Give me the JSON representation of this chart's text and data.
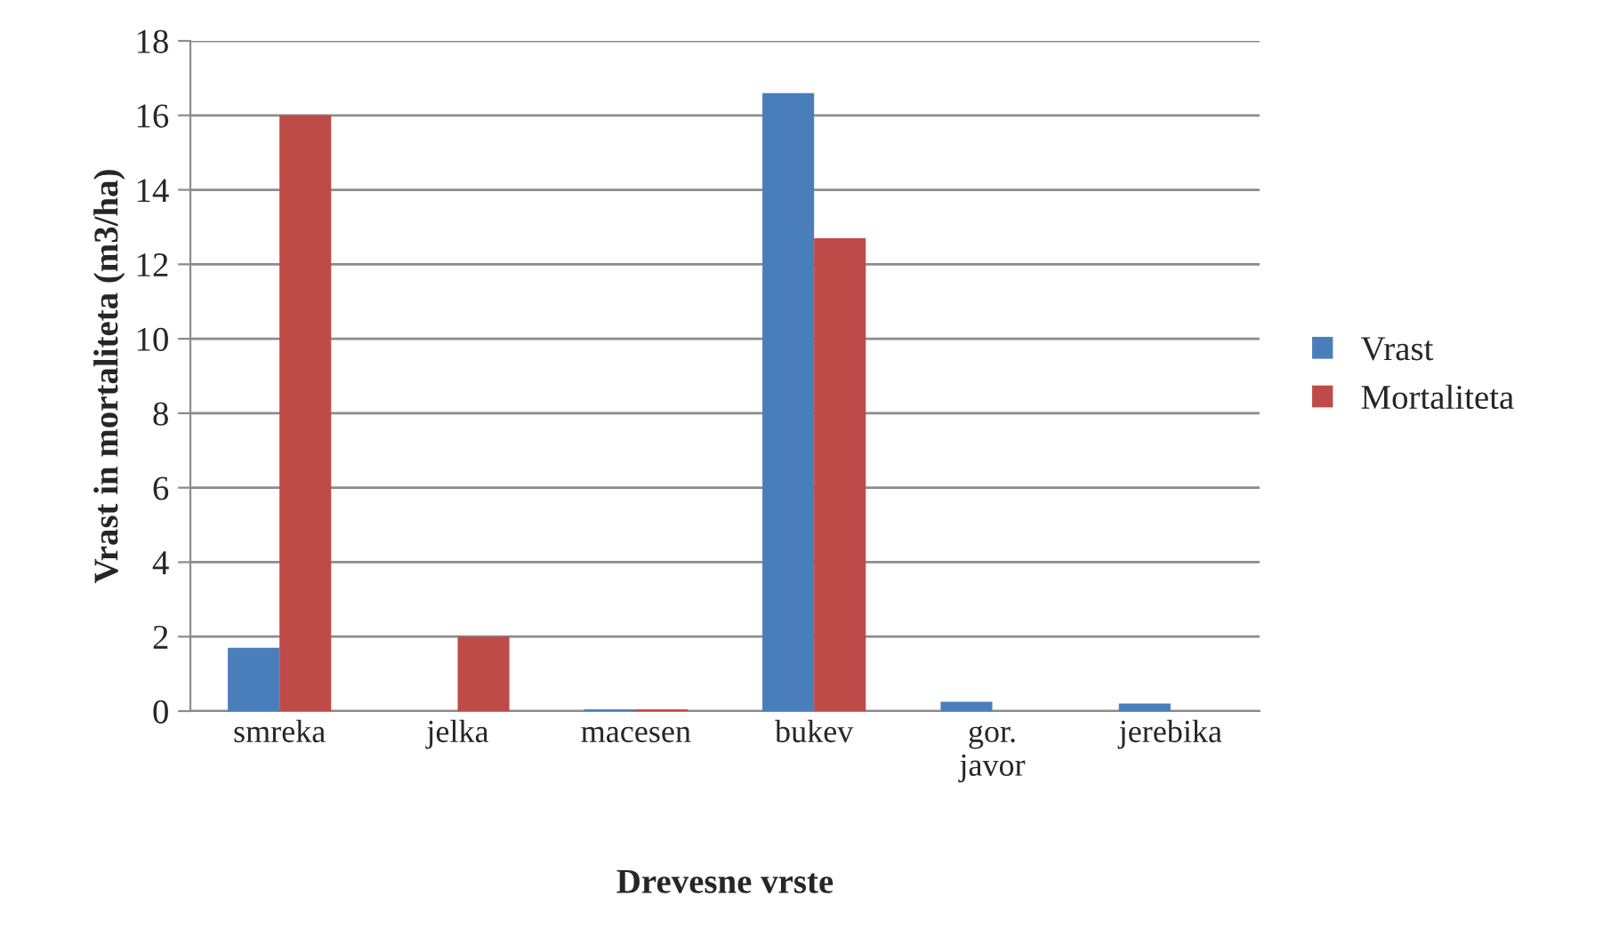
{
  "chart_data": {
    "type": "bar",
    "xlabel": "Drevesne vrste",
    "ylabel": "Vrast in mortaliteta (m3/ha)",
    "categories": [
      "smreka",
      "jelka",
      "macesen",
      "bukev",
      "gor.\njavor",
      "jerebika"
    ],
    "series": [
      {
        "name": "Vrast",
        "color": "#4a7ebb",
        "values": [
          1.7,
          null,
          0.05,
          16.6,
          0.25,
          0.2
        ]
      },
      {
        "name": "Mortaliteta",
        "color": "#be4b48",
        "values": [
          16,
          2,
          0.05,
          12.7,
          null,
          null
        ]
      }
    ],
    "ylim": [
      0,
      18
    ],
    "yticks": [
      0,
      2,
      4,
      6,
      8,
      10,
      12,
      14,
      16,
      18
    ],
    "grid": "y",
    "legend": "right"
  }
}
